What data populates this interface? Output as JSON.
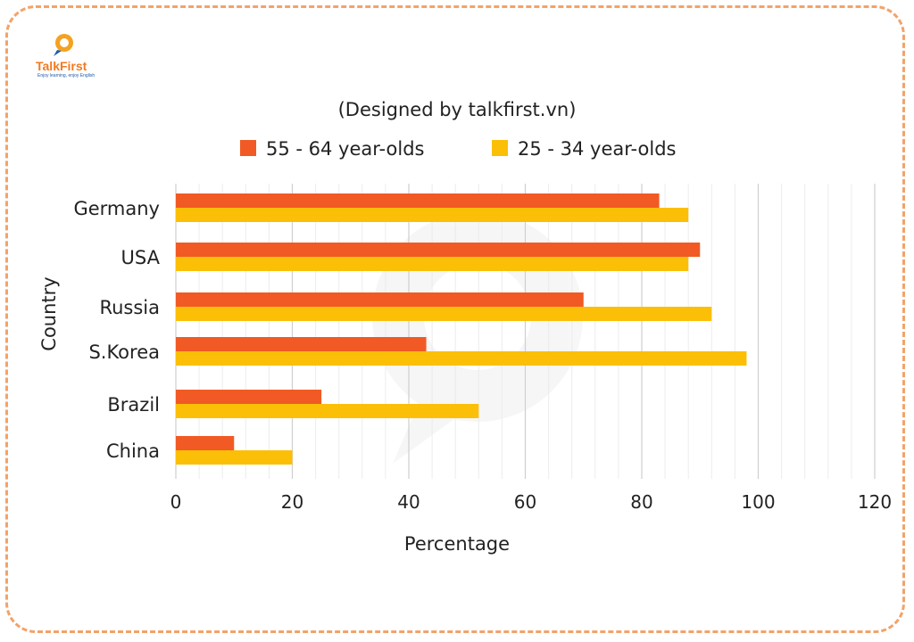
{
  "brand": {
    "name": "TalkFirst",
    "tagline": "Enjoy learning, enjoy English",
    "primary_color": "#f4a21f",
    "secondary_color": "#1f5aa8"
  },
  "chart_data": {
    "type": "bar",
    "orientation": "horizontal",
    "title": "(Designed by talkfirst.vn)",
    "xlabel": "Percentage",
    "ylabel": "Country",
    "categories": [
      "Germany",
      "USA",
      "Russia",
      "S.Korea",
      "Brazil",
      "China"
    ],
    "series": [
      {
        "name": "55 - 64 year-olds",
        "color": "#f15a24",
        "values": [
          83,
          90,
          70,
          43,
          25,
          10
        ]
      },
      {
        "name": "25 - 34 year-olds",
        "color": "#fcbf07",
        "values": [
          88,
          88,
          92,
          98,
          52,
          20
        ]
      }
    ],
    "xlim": [
      0,
      120
    ],
    "xticks": [
      0,
      20,
      40,
      60,
      80,
      100,
      120
    ],
    "grid": true,
    "legend_position": "top"
  }
}
